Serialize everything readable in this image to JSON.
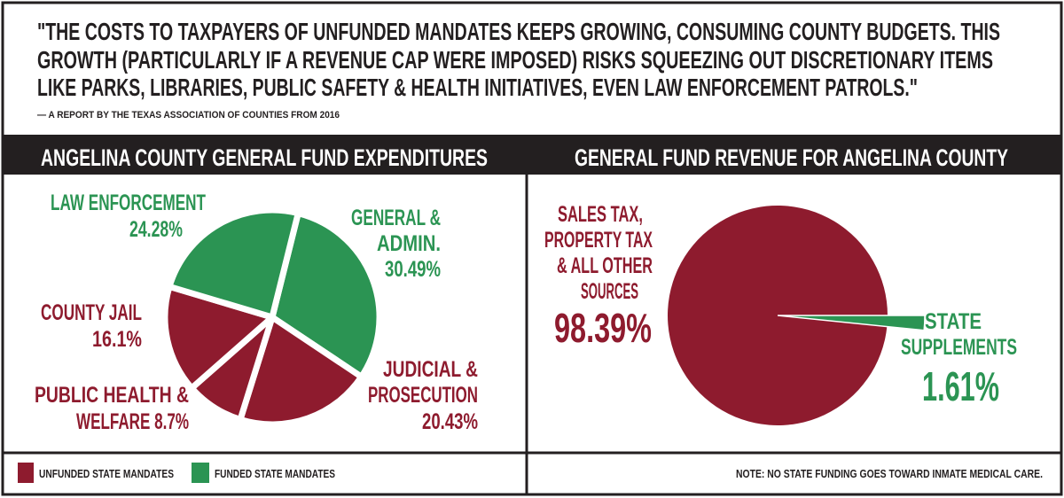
{
  "quote": {
    "lines": [
      "\"THE COSTS TO TAXPAYERS OF UNFUNDED MANDATES KEEPS GROWING, CONSUMING COUNTY BUDGETS. THIS",
      "GROWTH (PARTICULARLY IF A REVENUE CAP WERE IMPOSED) RISKS SQUEEZING OUT DISCRETIONARY ITEMS",
      "LIKE PARKS, LIBRARIES, PUBLIC SAFETY & HEALTH INITIATIVES, EVEN LAW ENFORCEMENT PATROLS.\""
    ],
    "attribution": "— A REPORT BY THE TEXAS ASSOCIATION OF COUNTIES FROM 2016"
  },
  "colors": {
    "unfunded": "#8e1b2e",
    "funded": "#2b9453",
    "dark": "#231f20"
  },
  "legend": {
    "unfunded": "UNFUNDED STATE MANDATES",
    "funded": "FUNDED STATE MANDATES"
  },
  "note": "NOTE: NO STATE FUNDING GOES TOWARD INMATE MEDICAL CARE.",
  "chart_data": [
    {
      "type": "pie",
      "title": "ANGELINA COUNTY GENERAL FUND EXPENDITURES",
      "slices": [
        {
          "label_lines": [
            "GENERAL &",
            "ADMIN.",
            "30.49%"
          ],
          "name": "GENERAL & ADMIN.",
          "value": 30.49,
          "category": "funded"
        },
        {
          "label_lines": [
            "JUDICIAL &",
            "PROSECUTION",
            "20.43%"
          ],
          "name": "JUDICIAL & PROSECUTION",
          "value": 20.43,
          "category": "unfunded"
        },
        {
          "label_lines": [
            "PUBLIC HEALTH &",
            "WELFARE 8.7%"
          ],
          "name": "PUBLIC HEALTH & WELFARE",
          "value": 8.7,
          "category": "unfunded"
        },
        {
          "label_lines": [
            "COUNTY JAIL",
            "16.1%"
          ],
          "name": "COUNTY JAIL",
          "value": 16.1,
          "category": "unfunded"
        },
        {
          "label_lines": [
            "LAW ENFORCEMENT",
            "24.28%"
          ],
          "name": "LAW ENFORCEMENT",
          "value": 24.28,
          "category": "funded"
        }
      ]
    },
    {
      "type": "pie",
      "title": "GENERAL FUND REVENUE FOR ANGELINA COUNTY",
      "slices": [
        {
          "label_lines": [
            "STATE",
            "SUPPLEMENTS",
            "1.61%"
          ],
          "name": "STATE SUPPLEMENTS",
          "value": 1.61,
          "category": "funded"
        },
        {
          "label_lines": [
            "SALES TAX,",
            "PROPERTY TAX",
            "& ALL OTHER",
            "SOURCES",
            "98.39%"
          ],
          "name": "SALES TAX, PROPERTY TAX & ALL OTHER SOURCES",
          "value": 98.39,
          "category": "unfunded"
        }
      ]
    }
  ]
}
